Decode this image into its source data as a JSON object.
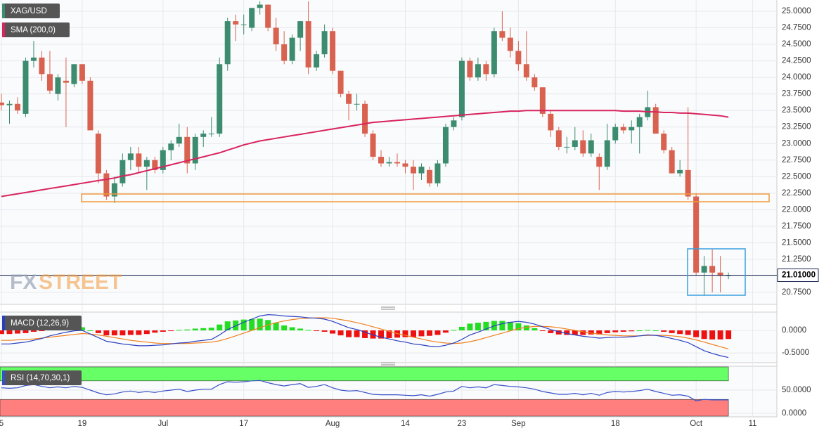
{
  "chart_data": [
    {
      "type": "candlestick",
      "title": "XAG/USD",
      "categories": [
        "5",
        null,
        null,
        null,
        null,
        null,
        null,
        null,
        null,
        null,
        "19",
        null,
        null,
        null,
        null,
        null,
        null,
        null,
        null,
        null,
        "Jul",
        null,
        null,
        null,
        null,
        null,
        null,
        null,
        null,
        null,
        "17",
        null,
        null,
        null,
        null,
        null,
        null,
        null,
        null,
        null,
        null,
        "Aug",
        null,
        null,
        null,
        null,
        null,
        null,
        null,
        null,
        "14",
        null,
        null,
        null,
        null,
        null,
        null,
        "23",
        null,
        null,
        null,
        null,
        null,
        null,
        "Sep",
        null,
        null,
        null,
        null,
        null,
        null,
        null,
        null,
        null,
        null,
        null,
        "18",
        null,
        null,
        null,
        null,
        null,
        null,
        null,
        null,
        null,
        "Oct",
        null,
        null,
        null,
        null,
        null,
        null,
        "11"
      ],
      "open": [
        23.62,
        23.58,
        23.6,
        23.45,
        24.25,
        24.3,
        24.05,
        23.75,
        23.95,
        23.9,
        24.2,
        23.95,
        23.15,
        22.55,
        22.2,
        22.4,
        22.75,
        22.85,
        22.65,
        22.75,
        22.6,
        22.9,
        23.0,
        23.1,
        22.7,
        23.1,
        23.15,
        23.15,
        24.2,
        24.85,
        24.8,
        24.75,
        25.05,
        25.1,
        24.75,
        24.5,
        24.25,
        24.6,
        24.85,
        24.15,
        24.35,
        24.7,
        24.1,
        23.75,
        23.6,
        23.6,
        23.15,
        22.8,
        22.7,
        22.72,
        22.7,
        22.65,
        22.55,
        22.6,
        22.4,
        22.7,
        23.25,
        23.4,
        24.25,
        24.0,
        24.2,
        24.05,
        24.7,
        24.6,
        24.4,
        24.2,
        24.0,
        23.85,
        23.45,
        23.2,
        22.95,
        22.95,
        23.05,
        22.85,
        22.8,
        22.65,
        23.05,
        23.25,
        23.2,
        23.25,
        23.4,
        23.55,
        23.15,
        22.9,
        22.55,
        22.6,
        22.2,
        21.05,
        21.15,
        21.05,
        21.0,
        null,
        null,
        null
      ],
      "high": [
        23.75,
        23.65,
        23.7,
        24.3,
        24.55,
        24.4,
        24.4,
        24.05,
        24.3,
        24.2,
        24.2,
        24.0,
        23.2,
        22.6,
        22.5,
        22.85,
        22.95,
        22.95,
        22.8,
        22.8,
        22.95,
        23.05,
        23.3,
        23.25,
        23.15,
        23.2,
        23.4,
        24.3,
        24.9,
        24.95,
        24.95,
        25.05,
        25.15,
        25.1,
        24.9,
        24.7,
        24.65,
        24.85,
        25.15,
        24.4,
        24.8,
        24.75,
        24.1,
        23.8,
        23.75,
        23.65,
        23.2,
        22.9,
        22.8,
        22.85,
        22.75,
        22.75,
        22.7,
        22.65,
        22.75,
        23.3,
        23.4,
        24.3,
        24.3,
        24.3,
        24.25,
        24.75,
        25.0,
        24.75,
        24.55,
        24.7,
        24.05,
        23.85,
        23.5,
        23.25,
        23.1,
        23.25,
        23.2,
        23.15,
        22.85,
        23.3,
        23.3,
        23.3,
        23.35,
        23.45,
        23.8,
        23.6,
        23.2,
        22.95,
        22.75,
        23.55,
        22.25,
        21.3,
        21.4,
        21.3,
        21.05,
        null,
        null,
        null
      ],
      "low": [
        23.5,
        23.3,
        23.45,
        23.4,
        24.15,
        23.95,
        23.75,
        23.65,
        23.25,
        23.85,
        23.9,
        23.2,
        22.4,
        22.15,
        22.1,
        22.35,
        22.6,
        22.55,
        22.3,
        22.55,
        22.55,
        22.75,
        22.95,
        22.55,
        22.6,
        22.95,
        23.1,
        23.1,
        24.1,
        24.55,
        24.65,
        24.7,
        24.95,
        24.7,
        24.4,
        24.2,
        24.2,
        24.4,
        24.05,
        24.1,
        24.3,
        24.05,
        23.7,
        23.35,
        23.5,
        23.1,
        22.75,
        22.65,
        22.65,
        22.65,
        22.55,
        22.3,
        22.45,
        22.35,
        22.35,
        22.65,
        23.2,
        23.35,
        23.95,
        23.95,
        23.95,
        24.0,
        24.55,
        24.3,
        24.1,
        23.95,
        23.8,
        23.4,
        23.1,
        22.9,
        22.85,
        22.9,
        22.8,
        22.8,
        22.3,
        22.6,
        23.0,
        23.15,
        23.0,
        22.85,
        23.35,
        23.15,
        22.85,
        22.55,
        22.5,
        22.15,
        21.0,
        20.7,
        20.75,
        20.75,
        20.95,
        null,
        null,
        null
      ],
      "close": [
        23.58,
        23.6,
        23.5,
        24.25,
        24.3,
        24.05,
        23.8,
        24.0,
        23.92,
        24.2,
        23.95,
        23.2,
        22.55,
        22.2,
        22.4,
        22.75,
        22.85,
        22.65,
        22.75,
        22.6,
        22.9,
        23.0,
        23.1,
        22.7,
        23.1,
        23.15,
        23.15,
        24.2,
        24.85,
        24.8,
        24.8,
        25.05,
        25.1,
        24.75,
        24.5,
        24.25,
        24.6,
        24.85,
        24.15,
        24.35,
        24.7,
        24.1,
        23.75,
        23.6,
        23.6,
        23.15,
        22.8,
        22.7,
        22.72,
        22.7,
        22.65,
        22.55,
        22.65,
        22.4,
        22.7,
        23.25,
        23.35,
        24.25,
        24.0,
        24.2,
        24.05,
        24.7,
        24.6,
        24.4,
        24.2,
        24.0,
        23.85,
        23.45,
        23.2,
        22.95,
        22.95,
        23.05,
        22.85,
        23.05,
        22.65,
        23.05,
        23.25,
        23.2,
        23.25,
        23.4,
        23.55,
        23.15,
        22.9,
        22.55,
        22.6,
        22.2,
        21.05,
        21.15,
        21.05,
        21.0,
        21.01,
        null,
        null,
        null
      ],
      "up_color": "#3d8c6f",
      "down_color": "#d9614f",
      "series": [
        {
          "name": "SMA (200,0)",
          "color": "#d8245e",
          "values": [
            22.2,
            22.22,
            22.24,
            22.26,
            22.28,
            22.3,
            22.32,
            22.34,
            22.36,
            22.38,
            22.4,
            22.42,
            22.44,
            22.46,
            22.48,
            22.51,
            22.53,
            22.56,
            22.59,
            22.62,
            22.65,
            22.68,
            22.71,
            22.74,
            22.77,
            22.8,
            22.83,
            22.86,
            22.9,
            22.94,
            22.98,
            23.01,
            23.04,
            23.06,
            23.08,
            23.1,
            23.12,
            23.14,
            23.16,
            23.18,
            23.2,
            23.22,
            23.24,
            23.26,
            23.28,
            23.3,
            23.32,
            23.33,
            23.34,
            23.35,
            23.36,
            23.37,
            23.38,
            23.39,
            23.4,
            23.41,
            23.42,
            23.43,
            23.44,
            23.45,
            23.46,
            23.47,
            23.48,
            23.49,
            23.49,
            23.5,
            23.5,
            23.5,
            23.5,
            23.5,
            23.5,
            23.5,
            23.5,
            23.5,
            23.5,
            23.5,
            23.5,
            23.49,
            23.49,
            23.49,
            23.48,
            23.48,
            23.47,
            23.47,
            23.46,
            23.46,
            23.45,
            23.44,
            23.43,
            23.42,
            23.4,
            null,
            null,
            null
          ]
        }
      ],
      "last_price": {
        "value": 21.01,
        "label": "21.01000"
      },
      "watermark": [
        "FX",
        "STREET"
      ],
      "ylim": [
        20.58,
        25.17
      ],
      "yticks": [
        {
          "value": 20.75,
          "label": "20.7500"
        },
        {
          "value": 21.0,
          "label": "21.0000"
        },
        {
          "value": 21.25,
          "label": "21.2500"
        },
        {
          "value": 21.5,
          "label": "21.5000"
        },
        {
          "value": 21.75,
          "label": "21.7500"
        },
        {
          "value": 22.0,
          "label": "22.0000"
        },
        {
          "value": 22.25,
          "label": "22.2500"
        },
        {
          "value": 22.5,
          "label": "22.5000"
        },
        {
          "value": 22.75,
          "label": "22.7500"
        },
        {
          "value": 23.0,
          "label": "23.0000"
        },
        {
          "value": 23.25,
          "label": "23.2500"
        },
        {
          "value": 23.5,
          "label": "23.5000"
        },
        {
          "value": 23.75,
          "label": "23.7500"
        },
        {
          "value": 24.0,
          "label": "24.0000"
        },
        {
          "value": 24.25,
          "label": "24.2500"
        },
        {
          "value": 24.5,
          "label": "24.5000"
        },
        {
          "value": 24.75,
          "label": "24.7500"
        },
        {
          "value": 25.0,
          "label": "25.0000"
        }
      ],
      "grid": true
    },
    {
      "type": "macd",
      "title": "MACD (12,26,9)",
      "histogram": [
        -0.08,
        -0.08,
        -0.07,
        -0.06,
        -0.03,
        -0.01,
        0.03,
        0.05,
        0.07,
        0.08,
        0.07,
        0.0,
        -0.06,
        -0.11,
        -0.11,
        -0.11,
        -0.1,
        -0.1,
        -0.08,
        -0.05,
        -0.03,
        -0.01,
        0.01,
        0.02,
        0.04,
        0.05,
        0.06,
        0.13,
        0.2,
        0.22,
        0.24,
        0.25,
        0.26,
        0.23,
        0.17,
        0.11,
        0.07,
        0.04,
        0.01,
        -0.01,
        -0.03,
        -0.07,
        -0.11,
        -0.15,
        -0.15,
        -0.17,
        -0.18,
        -0.18,
        -0.17,
        -0.16,
        -0.15,
        -0.15,
        -0.13,
        -0.12,
        -0.1,
        -0.05,
        0.01,
        0.08,
        0.15,
        0.17,
        0.19,
        0.21,
        0.21,
        0.19,
        0.16,
        0.11,
        0.05,
        -0.01,
        -0.06,
        -0.09,
        -0.1,
        -0.1,
        -0.1,
        -0.09,
        -0.09,
        -0.06,
        -0.04,
        -0.03,
        -0.02,
        0.0,
        0.01,
        0.0,
        -0.03,
        -0.06,
        -0.08,
        -0.1,
        -0.15,
        -0.19,
        -0.2,
        -0.2,
        -0.19,
        null,
        null,
        null
      ],
      "macd": [
        -0.3,
        -0.3,
        -0.28,
        -0.26,
        -0.22,
        -0.18,
        -0.12,
        -0.08,
        -0.04,
        -0.01,
        0.0,
        -0.08,
        -0.16,
        -0.24,
        -0.27,
        -0.3,
        -0.32,
        -0.34,
        -0.34,
        -0.33,
        -0.32,
        -0.3,
        -0.28,
        -0.27,
        -0.24,
        -0.22,
        -0.2,
        -0.1,
        0.02,
        0.1,
        0.18,
        0.25,
        0.32,
        0.35,
        0.34,
        0.32,
        0.31,
        0.3,
        0.28,
        0.27,
        0.25,
        0.2,
        0.13,
        0.06,
        0.02,
        -0.04,
        -0.1,
        -0.15,
        -0.19,
        -0.23,
        -0.26,
        -0.3,
        -0.32,
        -0.35,
        -0.36,
        -0.33,
        -0.28,
        -0.2,
        -0.1,
        -0.04,
        0.03,
        0.1,
        0.15,
        0.18,
        0.2,
        0.18,
        0.14,
        0.08,
        0.02,
        -0.03,
        -0.07,
        -0.1,
        -0.13,
        -0.15,
        -0.17,
        -0.16,
        -0.15,
        -0.15,
        -0.14,
        -0.12,
        -0.1,
        -0.11,
        -0.14,
        -0.18,
        -0.22,
        -0.27,
        -0.36,
        -0.45,
        -0.51,
        -0.56,
        -0.6,
        null,
        null,
        null
      ],
      "signal": [
        -0.22,
        -0.22,
        -0.21,
        -0.2,
        -0.19,
        -0.17,
        -0.15,
        -0.13,
        -0.11,
        -0.09,
        -0.07,
        -0.08,
        -0.1,
        -0.13,
        -0.16,
        -0.19,
        -0.22,
        -0.24,
        -0.26,
        -0.28,
        -0.29,
        -0.29,
        -0.29,
        -0.29,
        -0.28,
        -0.27,
        -0.26,
        -0.23,
        -0.18,
        -0.12,
        -0.06,
        0.0,
        0.06,
        0.12,
        0.17,
        0.21,
        0.24,
        0.26,
        0.27,
        0.28,
        0.28,
        0.27,
        0.24,
        0.21,
        0.17,
        0.13,
        0.08,
        0.03,
        -0.02,
        -0.07,
        -0.11,
        -0.15,
        -0.19,
        -0.23,
        -0.26,
        -0.28,
        -0.29,
        -0.28,
        -0.25,
        -0.21,
        -0.16,
        -0.11,
        -0.06,
        -0.01,
        0.04,
        0.07,
        0.09,
        0.09,
        0.08,
        0.06,
        0.03,
        0.0,
        -0.03,
        -0.06,
        -0.08,
        -0.1,
        -0.11,
        -0.12,
        -0.12,
        -0.12,
        -0.11,
        -0.11,
        -0.11,
        -0.12,
        -0.14,
        -0.17,
        -0.21,
        -0.26,
        -0.31,
        -0.36,
        -0.41,
        null,
        null,
        null
      ],
      "up_color": "#22dd22",
      "down_color": "#ee1111",
      "macd_color": "#2a3fbf",
      "signal_color": "#f0801e",
      "ylim": [
        -0.7,
        0.39
      ],
      "yticks": [
        {
          "value": 0,
          "label": "0.0000"
        },
        {
          "value": -0.5,
          "label": "-0.5000"
        }
      ]
    },
    {
      "type": "line",
      "title": "RSI (14,70,30,1)",
      "values": [
        55,
        54,
        55,
        60,
        62,
        58,
        55,
        57,
        55,
        58,
        56,
        50,
        44,
        40,
        42,
        46,
        48,
        45,
        47,
        45,
        48,
        50,
        52,
        47,
        50,
        52,
        52,
        62,
        68,
        67,
        68,
        70,
        71,
        66,
        62,
        59,
        62,
        64,
        56,
        58,
        62,
        55,
        50,
        48,
        49,
        45,
        41,
        40,
        40,
        40,
        39,
        38,
        40,
        37,
        41,
        46,
        48,
        58,
        55,
        57,
        55,
        62,
        60,
        58,
        57,
        55,
        52,
        47,
        44,
        41,
        41,
        43,
        40,
        43,
        39,
        45,
        47,
        46,
        47,
        49,
        52,
        47,
        43,
        39,
        40,
        37,
        27,
        30,
        29,
        29,
        29,
        null,
        null,
        null
      ],
      "color": "#3650c8",
      "levels": [
        30,
        70
      ],
      "upper_color": "#66ff66",
      "lower_color": "#ff7f7f",
      "ylim": [
        -6,
        100
      ],
      "yticks": [
        {
          "value": 50,
          "label": "50.0000"
        },
        {
          "value": 0,
          "label": "0.0000"
        }
      ]
    }
  ]
}
